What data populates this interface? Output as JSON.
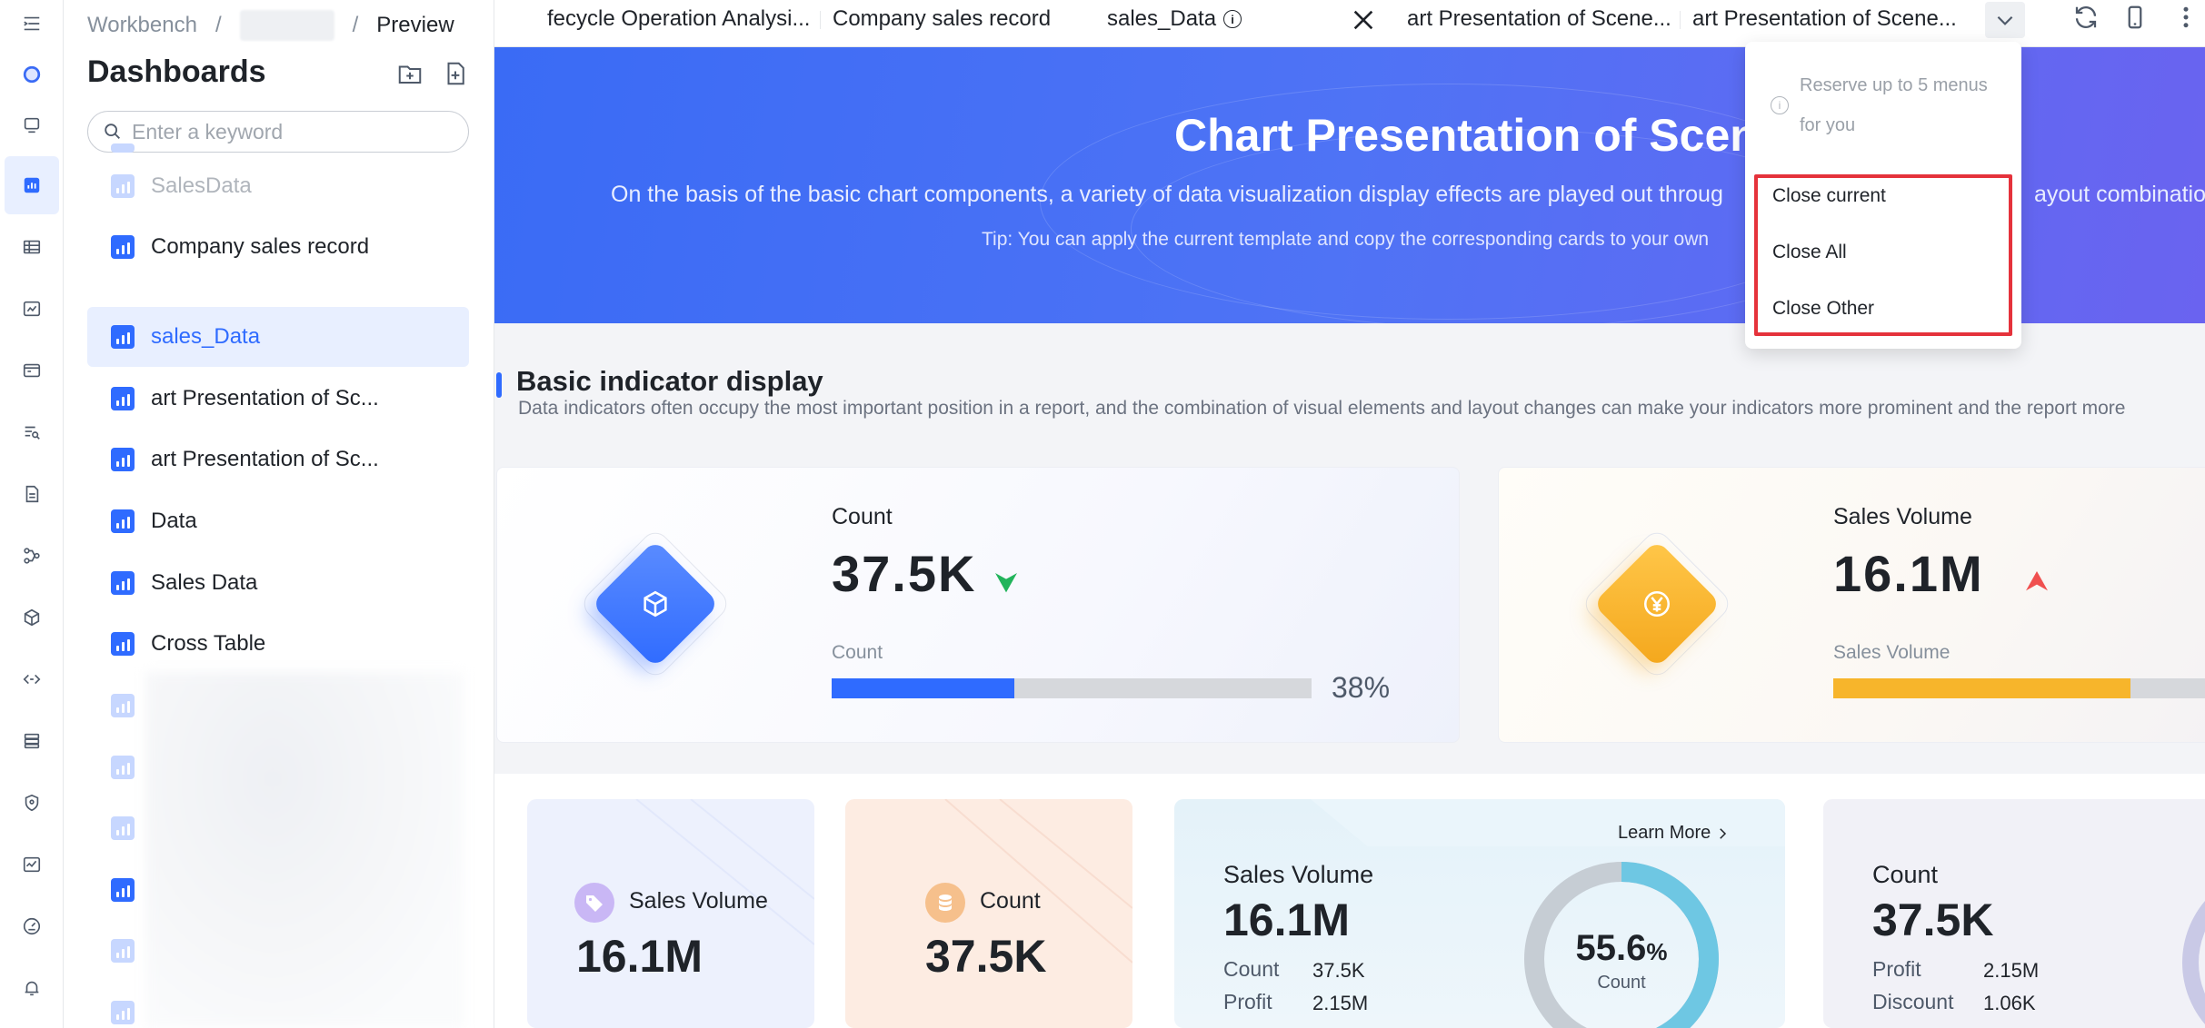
{
  "breadcrumb": {
    "root": "Workbench",
    "sep": "/",
    "current": "Preview"
  },
  "sidebar": {
    "title": "Dashboards",
    "search_placeholder": "Enter a keyword",
    "items": [
      {
        "label": "SalesData",
        "state": "faded"
      },
      {
        "label": "Company sales record",
        "state": "normal"
      },
      {
        "label": "sales_Data",
        "state": "active"
      },
      {
        "label": "art Presentation of Sc...",
        "state": "normal"
      },
      {
        "label": "art Presentation of Sc...",
        "state": "normal"
      },
      {
        "label": "Data",
        "state": "normal"
      },
      {
        "label": "Sales Data",
        "state": "normal"
      },
      {
        "label": "Cross Table",
        "state": "normal"
      }
    ]
  },
  "tabs": [
    {
      "label": "fecycle Operation Analysi..."
    },
    {
      "label": "Company sales record"
    },
    {
      "label": "sales_Data",
      "active": true
    },
    {
      "label": "art Presentation of Scene..."
    },
    {
      "label": "art Presentation of Scene..."
    }
  ],
  "banner": {
    "title": "Chart Presentation of Scene",
    "subtitle": "On the basis of the basic chart components, a variety of data visualization display effects are played out throug",
    "subtitle_tail": "ayout combination",
    "tip": "Tip: You can apply the current template and copy the corresponding cards to your own"
  },
  "section": {
    "title": "Basic indicator display",
    "subtitle": "Data indicators often occupy the most important position in a report, and the combination of visual elements and layout changes can make your indicators more prominent and the report more"
  },
  "kpi_cards": [
    {
      "label": "Count",
      "value": "37.5K",
      "trend": "down",
      "bar_label": "Count",
      "progress": 0.38,
      "progress_text": "38%",
      "color": "#2f6bff"
    },
    {
      "label": "Sales Volume",
      "value": "16.1M",
      "trend": "up",
      "bar_label": "Sales Volume",
      "progress": 0.62,
      "color": "#f7b52b"
    }
  ],
  "mini_cards": [
    {
      "label": "Sales Volume",
      "value": "16.1M"
    },
    {
      "label": "Count",
      "value": "37.5K"
    }
  ],
  "ring_card": {
    "learn_more": "Learn More",
    "label": "Sales Volume",
    "value": "16.1M",
    "stats": [
      {
        "label": "Count",
        "value": "37.5K"
      },
      {
        "label": "Profit",
        "value": "2.15M"
      }
    ],
    "ring_value": "55.6",
    "ring_unit": "%",
    "ring_label": "Count",
    "ring_progress": 0.556
  },
  "last_card": {
    "label": "Count",
    "value": "37.5K",
    "stats": [
      {
        "label": "Profit",
        "value": "2.15M"
      },
      {
        "label": "Discount",
        "value": "1.06K"
      }
    ]
  },
  "dropdown": {
    "tip": "Reserve up to 5 menus for you",
    "items": [
      "Close current",
      "Close All",
      "Close Other"
    ]
  }
}
